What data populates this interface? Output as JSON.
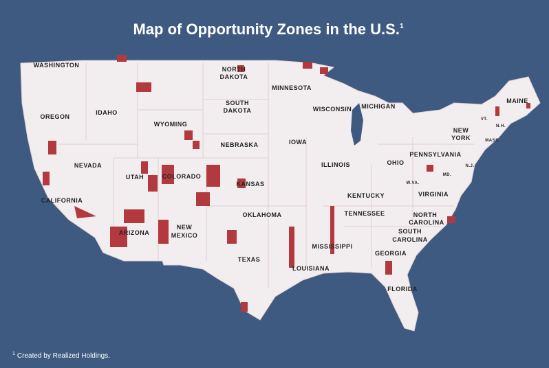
{
  "title": "Map of Opportunity Zones in the U.S.",
  "title_note_mark": "1",
  "footnote": {
    "mark": "1",
    "text": "Created by Realized Holdings."
  },
  "states": [
    "WASHINGTON",
    "OREGON",
    "IDAHO",
    "NEVADA",
    "CALIFORNIA",
    "UTAH",
    "ARIZONA",
    "WYOMING",
    "COLORADO",
    "NEW",
    "MEXICO",
    "NORTH",
    "DAKOTA",
    "SOUTH",
    "DAKOTA",
    "NEBRASKA",
    "KANSAS",
    "OKLAHOMA",
    "TEXAS",
    "MINNESOTA",
    "IOWA",
    "WISCONSIN",
    "ILLINOIS",
    "MICHIGAN",
    "OHIO",
    "KENTUCKY",
    "TENNESSEE",
    "MISSISSIPPI",
    "LOUISIANA",
    "GEORGIA",
    "FLORIDA",
    "NORTH",
    "CAROLINA",
    "SOUTH",
    "CAROLINA",
    "VIRGINIA",
    "W.VA.",
    "PENNSYLVANIA",
    "NEW",
    "YORK",
    "MAINE",
    "VT.",
    "N.H.",
    "MASS.",
    "N.J.",
    "MD."
  ]
}
